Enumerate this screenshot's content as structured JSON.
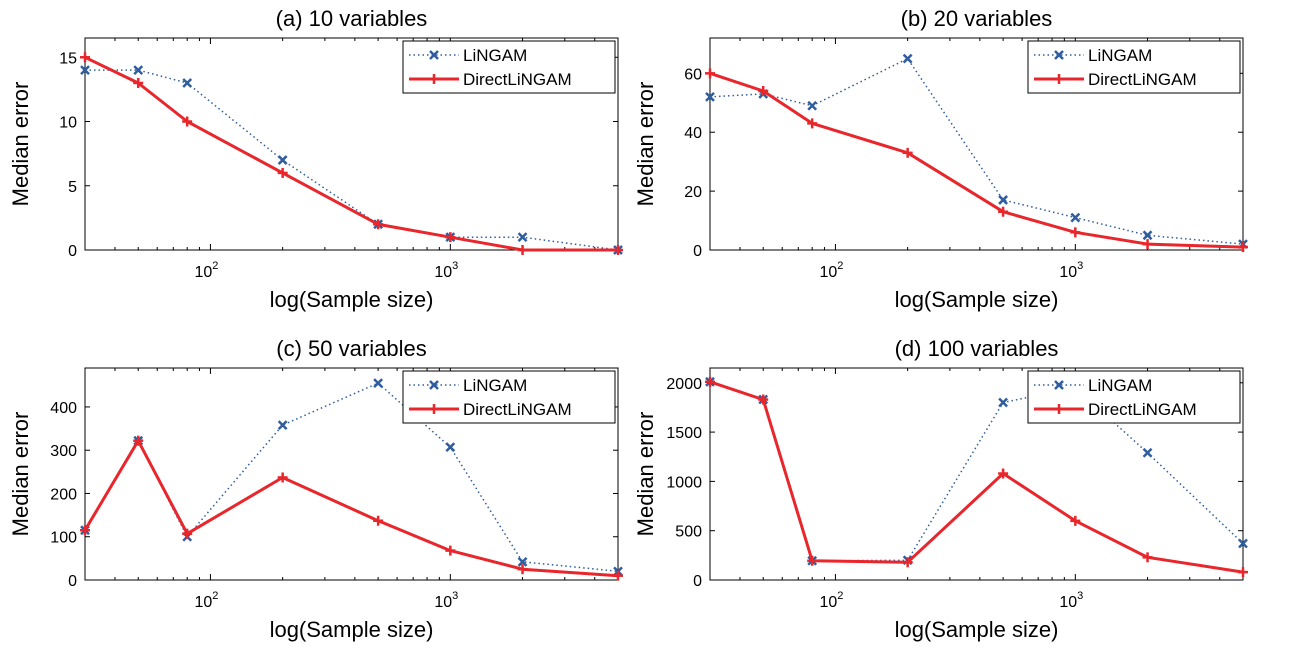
{
  "chart_data": [
    {
      "type": "line",
      "title": "(a) 10 variables",
      "xlabel": "log(Sample size)",
      "ylabel": "Median error",
      "xscale": "log",
      "xlim": [
        30,
        5000
      ],
      "ylim": [
        0,
        16.5
      ],
      "yticks": [
        0,
        5,
        10,
        15
      ],
      "xticks": [
        {
          "value": 100,
          "base": "10",
          "exp": "2"
        },
        {
          "value": 1000,
          "base": "10",
          "exp": "3"
        }
      ],
      "legend": "top-right",
      "x": [
        30,
        50,
        80,
        200,
        500,
        1000,
        2000,
        5000
      ],
      "series": [
        {
          "name": "LiNGAM",
          "color": "#2F5D9E",
          "style": "dotted",
          "marker": "x",
          "values": [
            14,
            14,
            13,
            7,
            2,
            1,
            1,
            0
          ]
        },
        {
          "name": "DirectLiNGAM",
          "color": "#E8262B",
          "style": "solid",
          "marker": "+",
          "values": [
            15,
            13,
            10,
            6,
            2,
            1,
            0,
            0
          ]
        }
      ]
    },
    {
      "type": "line",
      "title": "(b) 20 variables",
      "xlabel": "log(Sample size)",
      "ylabel": "Median error",
      "xscale": "log",
      "xlim": [
        30,
        5000
      ],
      "ylim": [
        0,
        72
      ],
      "yticks": [
        0,
        20,
        40,
        60
      ],
      "xticks": [
        {
          "value": 100,
          "base": "10",
          "exp": "2"
        },
        {
          "value": 1000,
          "base": "10",
          "exp": "3"
        }
      ],
      "legend": "top-right",
      "x": [
        30,
        50,
        80,
        200,
        500,
        1000,
        2000,
        5000
      ],
      "series": [
        {
          "name": "LiNGAM",
          "color": "#2F5D9E",
          "style": "dotted",
          "marker": "x",
          "values": [
            52,
            53,
            49,
            65,
            17,
            11,
            5,
            2
          ]
        },
        {
          "name": "DirectLiNGAM",
          "color": "#E8262B",
          "style": "solid",
          "marker": "+",
          "values": [
            60,
            54,
            43,
            33,
            13,
            6,
            2,
            1
          ]
        }
      ]
    },
    {
      "type": "line",
      "title": "(c) 50 variables",
      "xlabel": "log(Sample size)",
      "ylabel": "Median error",
      "xscale": "log",
      "xlim": [
        30,
        5000
      ],
      "ylim": [
        0,
        490
      ],
      "yticks": [
        0,
        100,
        200,
        300,
        400
      ],
      "xticks": [
        {
          "value": 100,
          "base": "10",
          "exp": "2"
        },
        {
          "value": 1000,
          "base": "10",
          "exp": "3"
        }
      ],
      "legend": "top-right",
      "x": [
        30,
        50,
        80,
        200,
        500,
        1000,
        2000,
        5000
      ],
      "series": [
        {
          "name": "LiNGAM",
          "color": "#2F5D9E",
          "style": "dotted",
          "marker": "x",
          "values": [
            115,
            322,
            100,
            358,
            455,
            307,
            42,
            20
          ]
        },
        {
          "name": "DirectLiNGAM",
          "color": "#E8262B",
          "style": "solid",
          "marker": "+",
          "values": [
            115,
            322,
            107,
            237,
            137,
            68,
            25,
            10
          ]
        }
      ]
    },
    {
      "type": "line",
      "title": "(d) 100 variables",
      "xlabel": "log(Sample size)",
      "ylabel": "Median error",
      "xscale": "log",
      "xlim": [
        30,
        5000
      ],
      "ylim": [
        0,
        2150
      ],
      "yticks": [
        0,
        500,
        1000,
        1500,
        2000
      ],
      "xticks": [
        {
          "value": 100,
          "base": "10",
          "exp": "2"
        },
        {
          "value": 1000,
          "base": "10",
          "exp": "3"
        }
      ],
      "legend": "top-right",
      "x": [
        30,
        50,
        80,
        200,
        500,
        1000,
        2000,
        5000
      ],
      "series": [
        {
          "name": "LiNGAM",
          "color": "#2F5D9E",
          "style": "dotted",
          "marker": "x",
          "values": [
            2010,
            1830,
            195,
            200,
            1800,
            1950,
            1290,
            370
          ]
        },
        {
          "name": "DirectLiNGAM",
          "color": "#E8262B",
          "style": "solid",
          "marker": "+",
          "values": [
            2010,
            1830,
            195,
            180,
            1080,
            600,
            230,
            80
          ]
        }
      ]
    }
  ]
}
